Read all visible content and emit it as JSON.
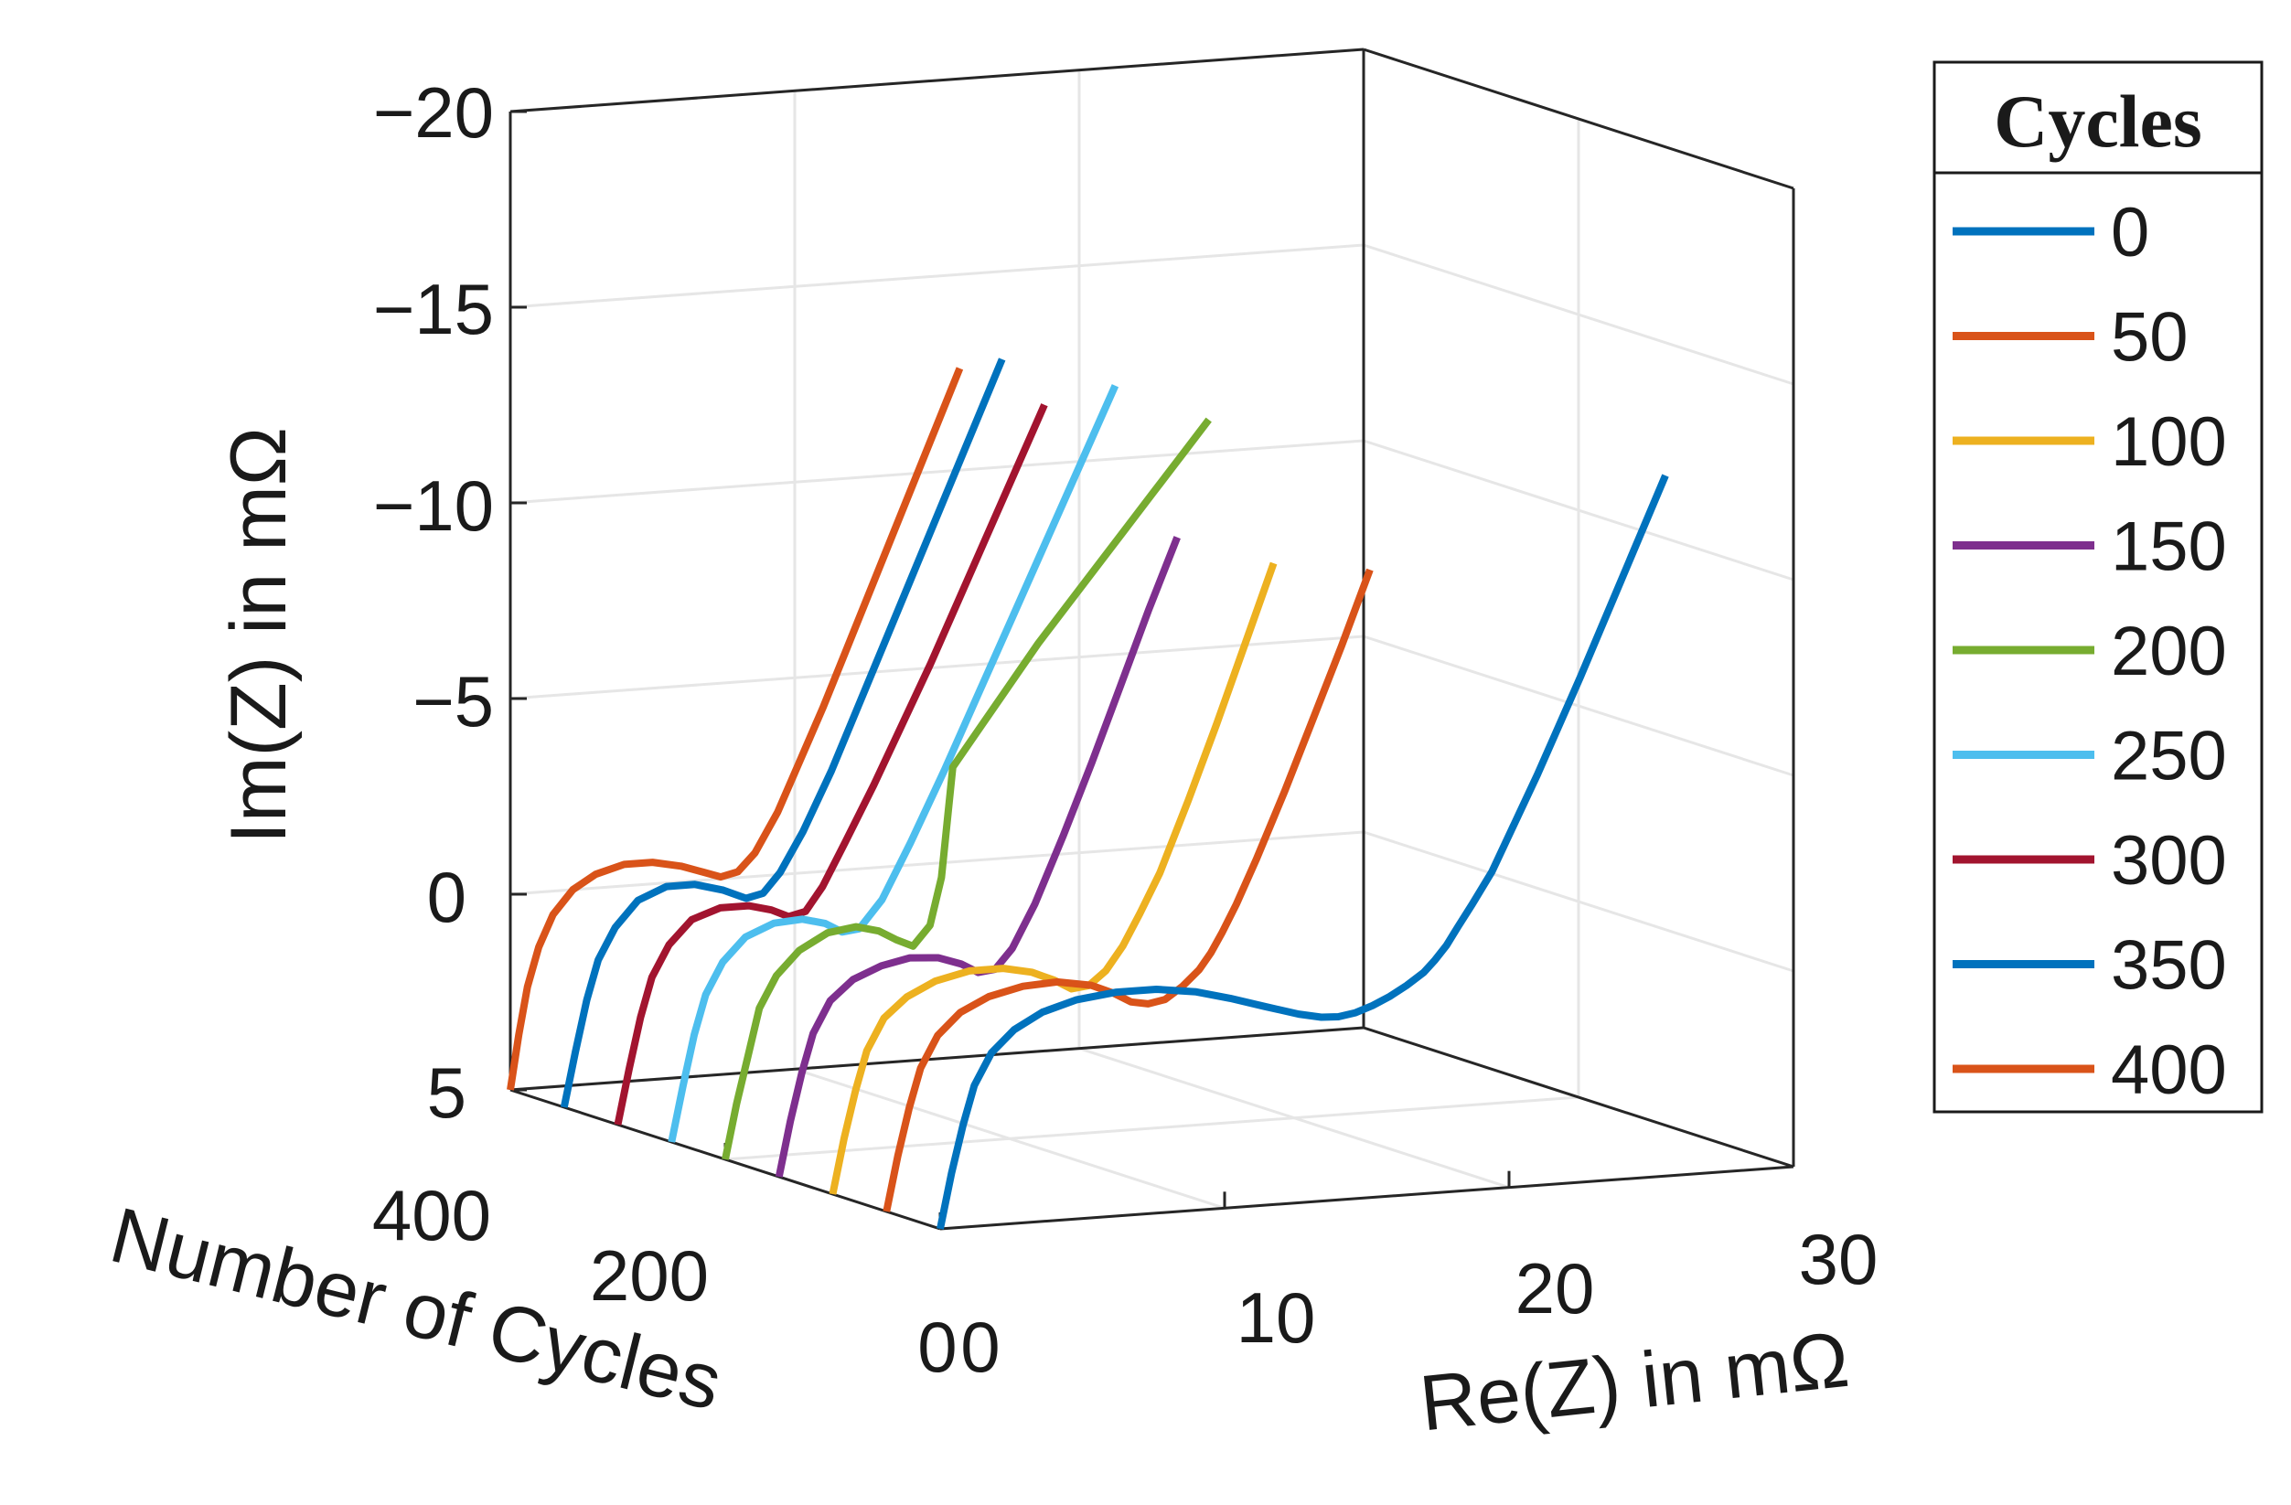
{
  "chart_data": {
    "type": "line",
    "projection": "3d",
    "xlabel": "Re(Z) in mΩ",
    "ylabel": "Number of Cycles",
    "zlabel": "Im(Z) in mΩ",
    "xlim": [
      0,
      30
    ],
    "ylim": [
      0,
      400
    ],
    "zlim": [
      5,
      -20
    ],
    "x_ticks": [
      "0",
      "10",
      "20",
      "30"
    ],
    "y_ticks": [
      "0",
      "200",
      "400"
    ],
    "z_ticks": [
      "−20",
      "−15",
      "−10",
      "−5",
      "0",
      "5"
    ],
    "grid": true,
    "legend": {
      "title": "Cycles",
      "position": "right"
    },
    "series": [
      {
        "name": "0",
        "color": "#0072BD",
        "cycles": 0,
        "x": [
          0,
          0.4,
          0.8,
          1.2,
          1.8,
          2.6,
          3.6,
          4.8,
          6.2,
          7.6,
          9.0,
          10.2,
          11.4,
          12.6,
          13.4,
          14.0,
          14.6,
          15.2,
          15.8,
          16.4,
          17.0,
          17.4,
          17.8,
          18.2,
          18.7,
          19.4,
          21.0,
          22.5,
          24.0,
          25.5
        ],
        "z": [
          5,
          3.6,
          2.4,
          1.4,
          0.6,
          0.05,
          -0.35,
          -0.6,
          -0.72,
          -0.72,
          -0.58,
          -0.35,
          -0.08,
          0.18,
          0.3,
          0.32,
          0.25,
          0.1,
          -0.1,
          -0.35,
          -0.65,
          -0.95,
          -1.3,
          -1.75,
          -2.3,
          -3.1,
          -5.5,
          -7.9,
          -10.4,
          -12.9
        ]
      },
      {
        "name": "50",
        "color": "#D95319",
        "cycles": 50,
        "x": [
          0,
          0.4,
          0.8,
          1.2,
          1.8,
          2.6,
          3.6,
          4.8,
          6.0,
          7.2,
          8.0,
          8.6,
          9.2,
          9.8,
          10.4,
          11.0,
          11.4,
          11.8,
          12.3,
          13.0,
          14.0,
          15.0,
          16.0,
          17.0
        ],
        "z": [
          5,
          3.6,
          2.4,
          1.4,
          0.6,
          0.05,
          -0.3,
          -0.5,
          -0.55,
          -0.4,
          -0.15,
          0.1,
          0.18,
          0.1,
          -0.2,
          -0.6,
          -1.0,
          -1.5,
          -2.2,
          -3.3,
          -5.0,
          -6.8,
          -8.6,
          -10.5
        ]
      },
      {
        "name": "100",
        "color": "#EDB120",
        "cycles": 100,
        "x": [
          0,
          0.4,
          0.8,
          1.2,
          1.8,
          2.6,
          3.6,
          4.8,
          6.0,
          7.0,
          7.8,
          8.4,
          9.0,
          9.6,
          10.2,
          10.8,
          11.5,
          12.5,
          13.5,
          14.5,
          15.5
        ],
        "z": [
          5,
          3.6,
          2.4,
          1.4,
          0.6,
          0.1,
          -0.25,
          -0.45,
          -0.45,
          -0.3,
          -0.05,
          0.2,
          0.15,
          -0.2,
          -0.8,
          -1.6,
          -2.6,
          -4.4,
          -6.3,
          -8.3,
          -10.3
        ]
      },
      {
        "name": "150",
        "color": "#7E2F8E",
        "cycles": 150,
        "x": [
          0,
          0.4,
          0.8,
          1.2,
          1.8,
          2.6,
          3.6,
          4.6,
          5.6,
          6.4,
          7.0,
          7.6,
          8.2,
          9.0,
          10.0,
          11.0,
          12.0,
          13.0,
          14.0
        ],
        "z": [
          5,
          3.6,
          2.4,
          1.4,
          0.6,
          0.1,
          -0.2,
          -0.35,
          -0.3,
          -0.1,
          0.15,
          0.1,
          -0.4,
          -1.5,
          -3.2,
          -5.0,
          -6.9,
          -8.8,
          -10.6
        ]
      },
      {
        "name": "200",
        "color": "#77AC30",
        "cycles": 200,
        "x": [
          0,
          0.4,
          0.8,
          1.2,
          1.8,
          2.6,
          3.6,
          4.6,
          5.4,
          6.0,
          6.6,
          7.2,
          7.6,
          8.0,
          9.0,
          10.0,
          11.0,
          12.0,
          13.0,
          14.0,
          15.0,
          16.0,
          17.0
        ],
        "z": [
          5,
          3.6,
          2.4,
          1.2,
          0.4,
          -0.2,
          -0.6,
          -0.7,
          -0.55,
          -0.3,
          -0.1,
          -0.6,
          -1.8,
          -4.6,
          -5.6,
          -6.6,
          -7.6,
          -8.5,
          -9.4,
          -10.3,
          -11.2,
          -12.1,
          -13.0
        ]
      },
      {
        "name": "250",
        "color": "#4DBEEE",
        "cycles": 250,
        "x": [
          0,
          0.4,
          0.8,
          1.2,
          1.8,
          2.6,
          3.6,
          4.6,
          5.4,
          6.0,
          6.6,
          7.4,
          8.4,
          9.6,
          10.8,
          12.0,
          13.2,
          14.4,
          15.6
        ],
        "z": [
          5,
          3.6,
          2.3,
          1.3,
          0.5,
          -0.1,
          -0.4,
          -0.45,
          -0.3,
          -0.05,
          -0.1,
          -0.8,
          -2.2,
          -4.0,
          -5.9,
          -7.8,
          -9.7,
          -11.6,
          -13.5
        ]
      },
      {
        "name": "300",
        "color": "#A2142F",
        "cycles": 300,
        "x": [
          0,
          0.4,
          0.8,
          1.2,
          1.8,
          2.6,
          3.6,
          4.6,
          5.4,
          6.0,
          6.6,
          7.2,
          8.0,
          9.0,
          10.0,
          11.0,
          12.0,
          13.0,
          14.0,
          15.0
        ],
        "z": [
          5,
          3.6,
          2.3,
          1.3,
          0.5,
          -0.1,
          -0.35,
          -0.35,
          -0.2,
          0.0,
          -0.1,
          -0.7,
          -1.8,
          -3.2,
          -4.7,
          -6.2,
          -7.8,
          -9.4,
          -11.0,
          -12.6
        ]
      },
      {
        "name": "350",
        "color": "#0072BD",
        "cycles": 350,
        "x": [
          0,
          0.4,
          0.8,
          1.2,
          1.8,
          2.6,
          3.6,
          4.6,
          5.6,
          6.4,
          7.0,
          7.6,
          8.4,
          9.4,
          10.4,
          11.4,
          12.4,
          13.4,
          14.4,
          15.4
        ],
        "z": [
          5,
          3.6,
          2.3,
          1.3,
          0.5,
          -0.15,
          -0.45,
          -0.45,
          -0.25,
          0.0,
          -0.1,
          -0.6,
          -1.6,
          -3.1,
          -4.8,
          -6.5,
          -8.2,
          -9.9,
          -11.6,
          -13.3
        ]
      },
      {
        "name": "400",
        "color": "#D95319",
        "cycles": 400,
        "x": [
          0,
          0.3,
          0.6,
          1.0,
          1.5,
          2.2,
          3.0,
          4.0,
          5.0,
          6.0,
          6.8,
          7.4,
          8.0,
          8.6,
          9.4,
          10.2,
          11.0,
          11.8,
          12.6,
          13.4,
          14.2,
          15.0,
          15.8
        ],
        "z": [
          5,
          3.6,
          2.4,
          1.4,
          0.6,
          0.0,
          -0.35,
          -0.55,
          -0.55,
          -0.4,
          -0.2,
          -0.05,
          -0.15,
          -0.6,
          -1.6,
          -2.9,
          -4.2,
          -5.6,
          -7.0,
          -8.4,
          -9.8,
          -11.2,
          -12.6
        ]
      }
    ]
  }
}
